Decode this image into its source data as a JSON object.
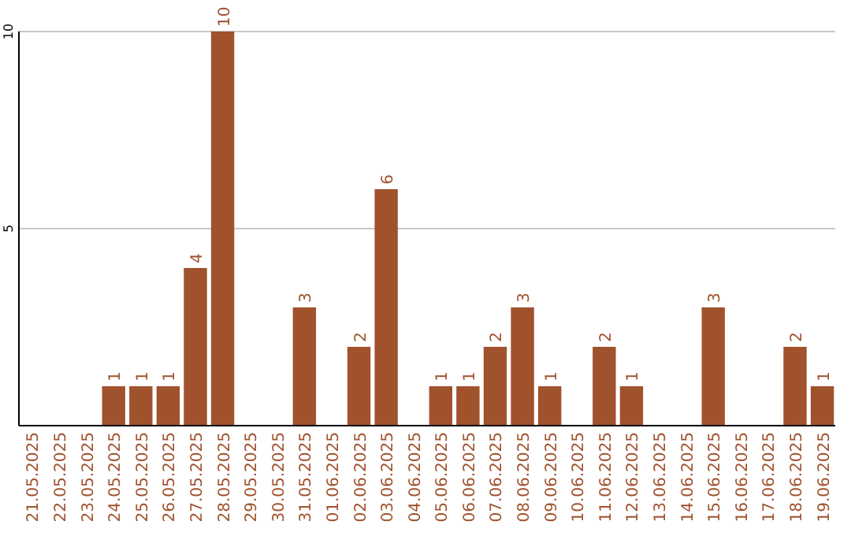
{
  "chart_data": {
    "type": "bar",
    "categories": [
      "21.05.2025",
      "22.05.2025",
      "23.05.2025",
      "24.05.2025",
      "25.05.2025",
      "26.05.2025",
      "27.05.2025",
      "28.05.2025",
      "29.05.2025",
      "30.05.2025",
      "31.05.2025",
      "01.06.2025",
      "02.06.2025",
      "03.06.2025",
      "04.06.2025",
      "05.06.2025",
      "06.06.2025",
      "07.06.2025",
      "08.06.2025",
      "09.06.2025",
      "10.06.2025",
      "11.06.2025",
      "12.06.2025",
      "13.06.2025",
      "14.06.2025",
      "15.06.2025",
      "16.06.2025",
      "17.06.2025",
      "18.06.2025",
      "19.06.2025"
    ],
    "values": [
      0,
      0,
      0,
      1,
      1,
      1,
      4,
      10,
      0,
      0,
      3,
      0,
      2,
      6,
      0,
      1,
      1,
      2,
      3,
      1,
      0,
      2,
      1,
      0,
      0,
      3,
      0,
      0,
      2,
      1
    ],
    "value_labels": [
      null,
      null,
      null,
      "1",
      "1",
      "1",
      "4",
      "10",
      null,
      null,
      "3",
      null,
      "2",
      "6",
      null,
      "1",
      "1",
      "2",
      "3",
      "1",
      null,
      "2",
      "1",
      null,
      null,
      "3",
      null,
      null,
      "2",
      "1"
    ],
    "color": "#a0522d",
    "ylim": [
      0,
      10
    ],
    "yticks": [
      5,
      10
    ],
    "grid": "y"
  }
}
